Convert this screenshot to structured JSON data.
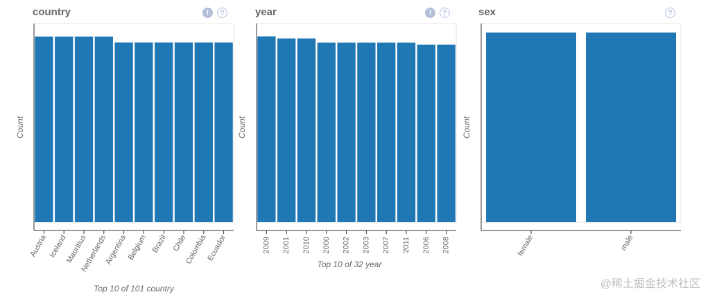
{
  "colors": {
    "bar": "#1f77b4",
    "axis": "#333333",
    "text": "#666666",
    "icon": "#b3bfd9"
  },
  "icons": {
    "warning": "warning-icon",
    "help": "help-icon",
    "warning_glyph": "!",
    "help_glyph": "?"
  },
  "watermark": "@稀土掘金技术社区",
  "chart_data": [
    {
      "type": "bar",
      "title": "country",
      "ylabel": "Count",
      "xlabel": "Top 10 of 101 country",
      "categories": [
        "Austria",
        "Iceland",
        "Mauritius",
        "Netherlands",
        "Argentina",
        "Belgium",
        "Brazil",
        "Chile",
        "Colombia",
        "Ecuador"
      ],
      "values": [
        372,
        372,
        372,
        372,
        360,
        360,
        360,
        360,
        360,
        360
      ],
      "ylim": [
        0,
        380
      ],
      "yticks_shown": false,
      "has_warning_icon": true,
      "tick_rotation": -60
    },
    {
      "type": "bar",
      "title": "year",
      "ylabel": "Count",
      "xlabel": "Top 10 of 32 year",
      "categories": [
        "2009",
        "2001",
        "2010",
        "2000",
        "2002",
        "2003",
        "2007",
        "2011",
        "2006",
        "2008"
      ],
      "values": [
        1068,
        1056,
        1056,
        1032,
        1032,
        1032,
        1032,
        1032,
        1020,
        1020
      ],
      "ylim": [
        0,
        1090
      ],
      "yticks_shown": false,
      "has_warning_icon": true,
      "tick_rotation": -90
    },
    {
      "type": "bar",
      "title": "sex",
      "ylabel": "Count",
      "xlabel": "",
      "categories": [
        "female",
        "male"
      ],
      "values": [
        13910,
        13910
      ],
      "ylim": [
        0,
        13910
      ],
      "yticks_shown": false,
      "has_warning_icon": false,
      "tick_rotation": -60
    }
  ]
}
